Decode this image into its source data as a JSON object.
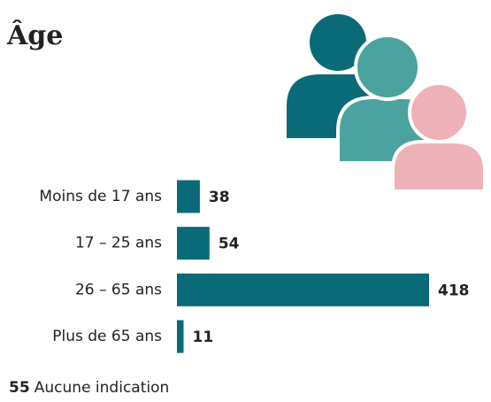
{
  "chart_data": {
    "type": "bar",
    "orientation": "horizontal",
    "title": "Âge",
    "categories": [
      "Moins de 17 ans",
      "17 – 25 ans",
      "26 – 65 ans",
      "Plus de 65 ans"
    ],
    "values": [
      38,
      54,
      418,
      11
    ],
    "color": "#0a6a77",
    "note": {
      "value": 55,
      "label": "Aucune indication"
    }
  }
}
